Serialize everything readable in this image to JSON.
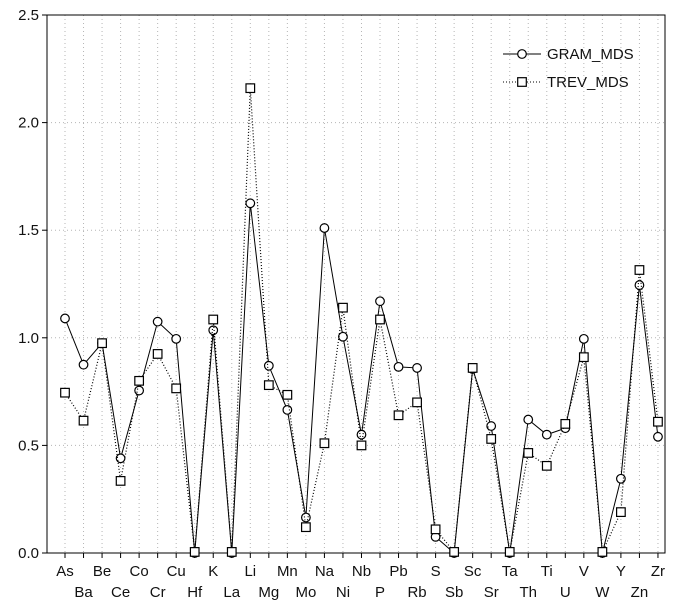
{
  "chart_data": {
    "type": "line",
    "title": "",
    "xlabel": "",
    "ylabel": "",
    "ylim": [
      0,
      2.5
    ],
    "yticks": [
      "0.0",
      "0.5",
      "1.0",
      "1.5",
      "2.0",
      "2.5"
    ],
    "grid": true,
    "legend_position": "top-right",
    "categories": [
      "As",
      "Ba",
      "Be",
      "Ce",
      "Co",
      "Cr",
      "Cu",
      "Hf",
      "K",
      "La",
      "Li",
      "Mg",
      "Mn",
      "Mo",
      "Na",
      "Ni",
      "Nb",
      "P",
      "Pb",
      "Rb",
      "S",
      "Sb",
      "Sc",
      "Sr",
      "Ta",
      "Th",
      "Ti",
      "U",
      "V",
      "W",
      "Y",
      "Zn",
      "Zr"
    ],
    "series": [
      {
        "name": "GRAM_MDS",
        "marker": "circle",
        "line": "solid",
        "values": [
          1.09,
          0.875,
          0.975,
          0.44,
          0.755,
          1.075,
          0.995,
          0.0,
          1.035,
          0.0,
          1.625,
          0.87,
          0.665,
          0.165,
          1.51,
          1.005,
          0.55,
          1.17,
          0.865,
          0.86,
          0.075,
          0.0,
          0.855,
          0.59,
          0.0,
          0.62,
          0.55,
          0.58,
          0.995,
          0.0,
          0.345,
          1.245,
          0.54
        ]
      },
      {
        "name": "TREV_MDS",
        "marker": "square",
        "line": "dotted",
        "values": [
          0.745,
          0.615,
          0.975,
          0.335,
          0.8,
          0.925,
          0.765,
          0.005,
          1.085,
          0.005,
          2.16,
          0.78,
          0.735,
          0.12,
          0.51,
          1.14,
          0.5,
          1.085,
          0.64,
          0.7,
          0.11,
          0.005,
          0.86,
          0.53,
          0.005,
          0.465,
          0.405,
          0.6,
          0.91,
          0.005,
          0.19,
          1.315,
          0.61
        ]
      }
    ]
  }
}
